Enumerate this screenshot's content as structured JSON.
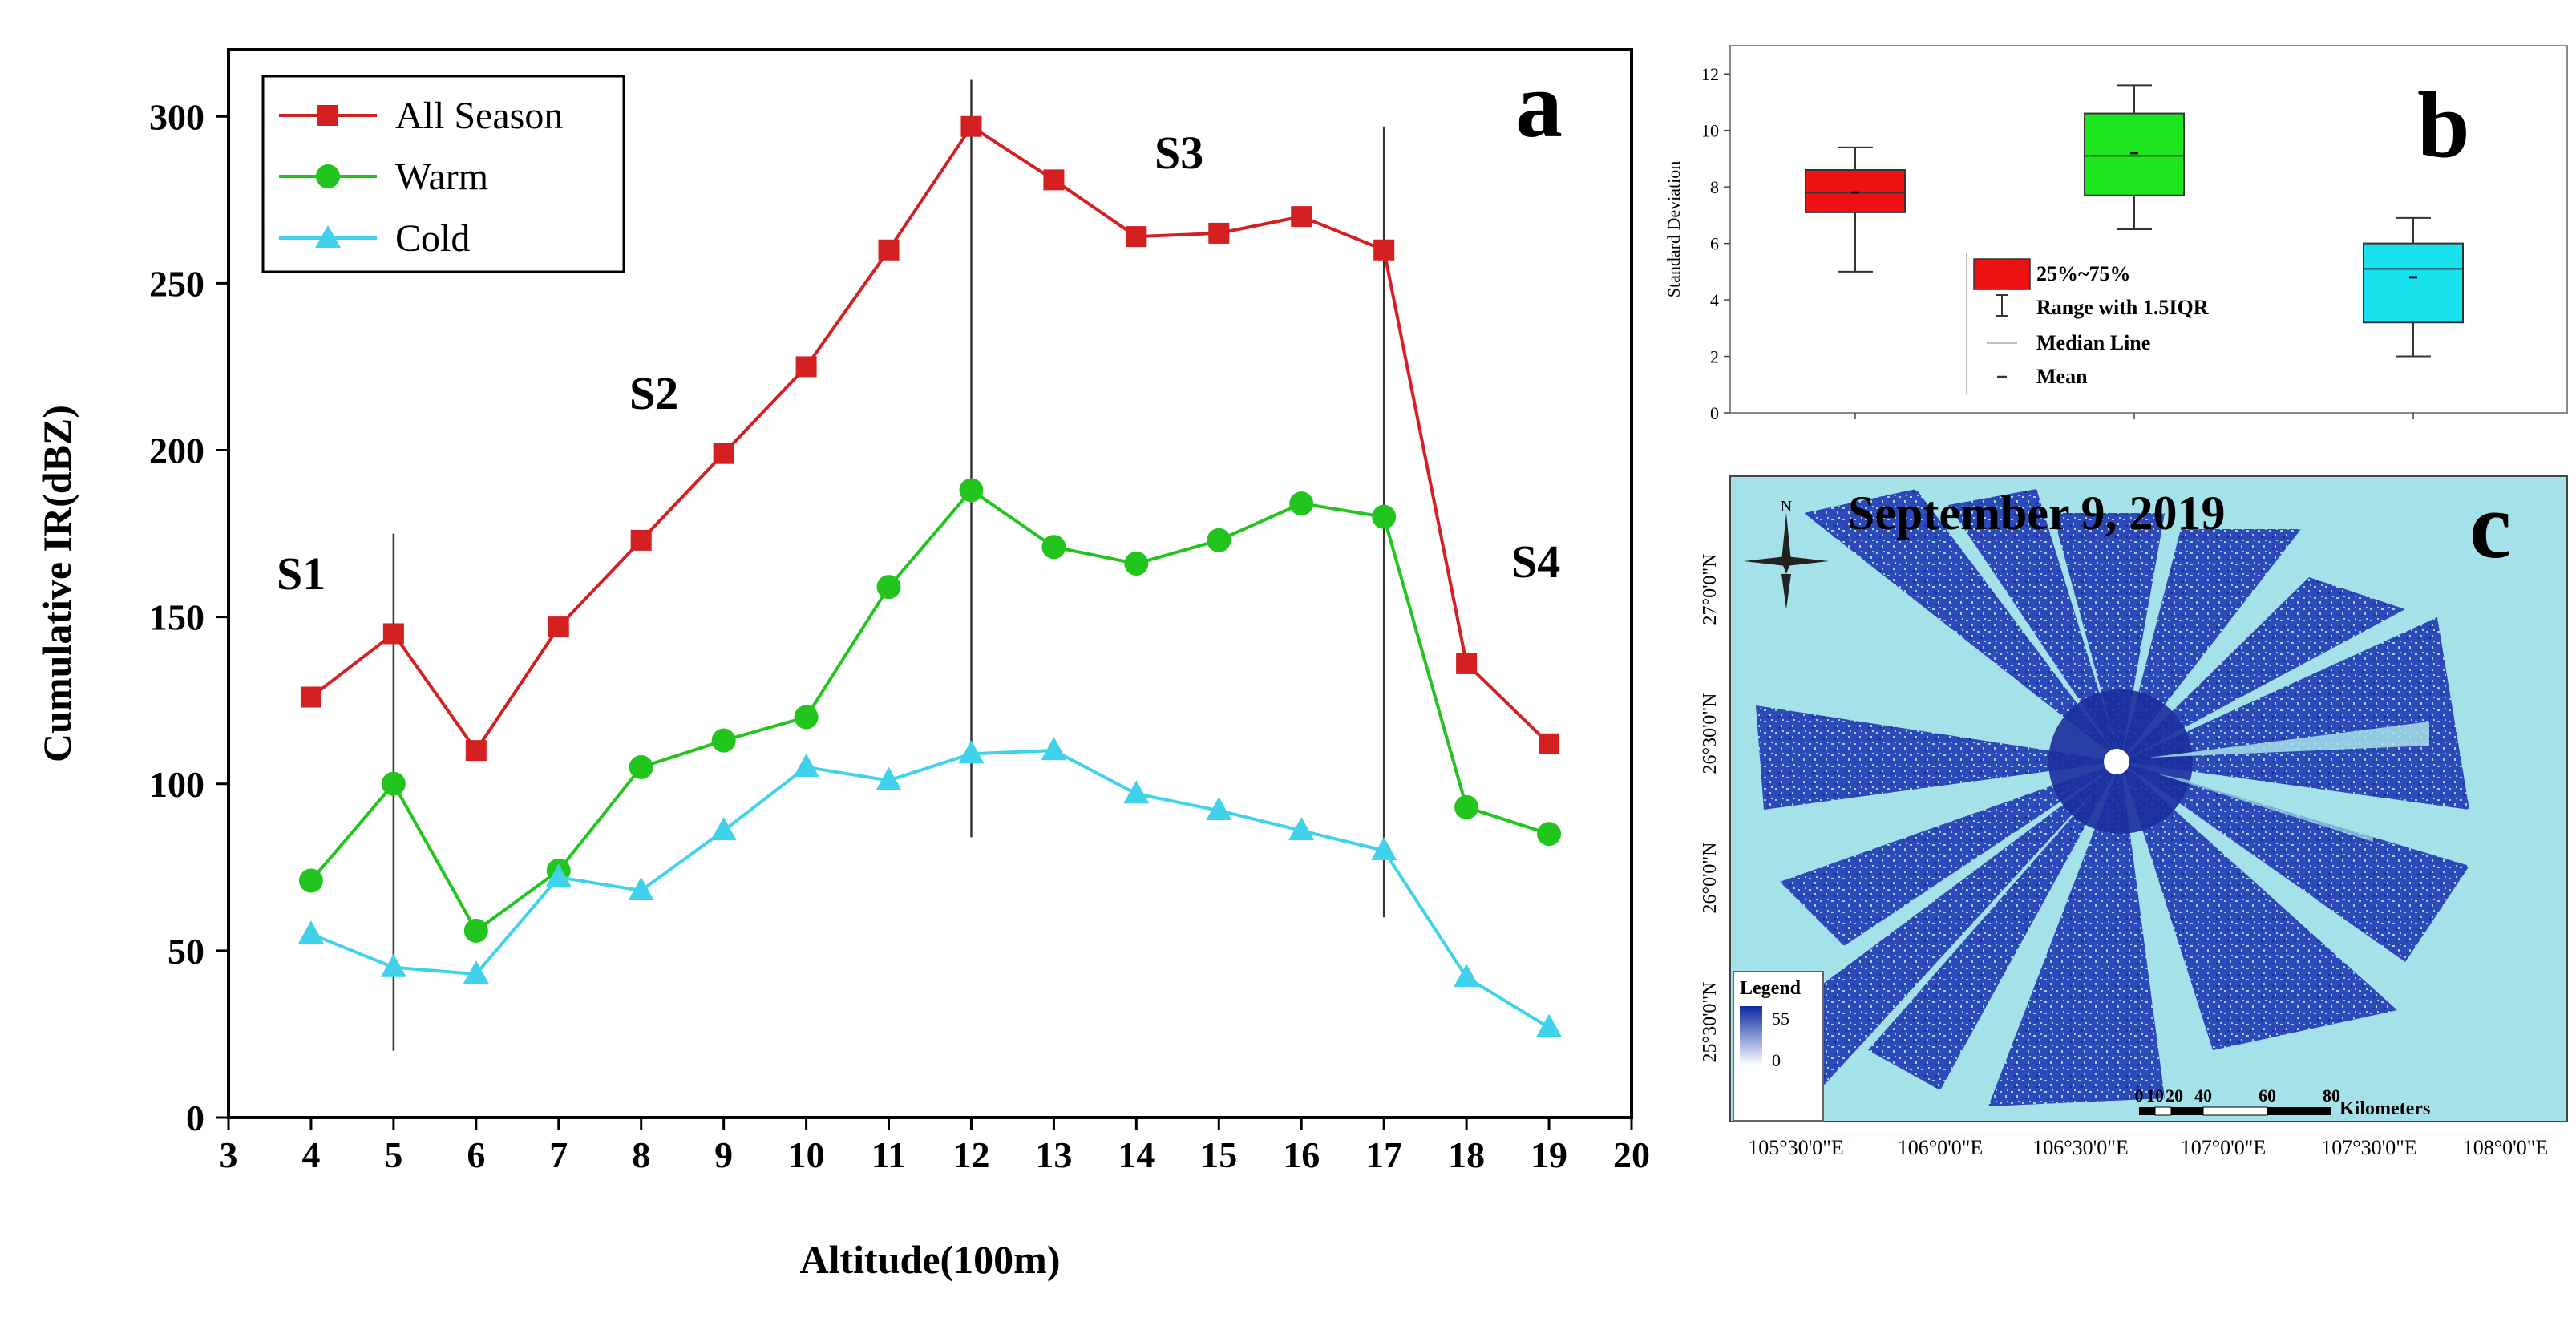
{
  "panel_a": {
    "label": "a",
    "chart_data": {
      "type": "line",
      "xlabel": "Altitude(100m)",
      "ylabel": "Cumulative IR(dBZ)",
      "xlim": [
        3,
        20
      ],
      "ylim": [
        0,
        320
      ],
      "x_ticks": [
        3,
        4,
        5,
        6,
        7,
        8,
        9,
        10,
        11,
        12,
        13,
        14,
        15,
        16,
        17,
        18,
        19,
        20
      ],
      "y_ticks": [
        0,
        50,
        100,
        150,
        200,
        250,
        300
      ],
      "x": [
        4,
        5,
        6,
        7,
        8,
        9,
        10,
        11,
        12,
        13,
        14,
        15,
        16,
        17,
        18,
        19
      ],
      "series": [
        {
          "name": "All Season",
          "color": "#d42020",
          "marker": "square",
          "values": [
            126,
            145,
            110,
            147,
            173,
            199,
            225,
            260,
            297,
            281,
            264,
            265,
            270,
            260,
            136,
            112
          ]
        },
        {
          "name": "Warm",
          "color": "#22c51e",
          "marker": "circle",
          "values": [
            71,
            100,
            56,
            74,
            105,
            113,
            120,
            159,
            188,
            171,
            166,
            173,
            184,
            180,
            93,
            85
          ]
        },
        {
          "name": "Cold",
          "color": "#3fd2ea",
          "marker": "triangle",
          "values": [
            55,
            45,
            43,
            72,
            68,
            86,
            105,
            101,
            109,
            110,
            97,
            92,
            86,
            80,
            42,
            27
          ]
        }
      ],
      "vertical_lines": [
        {
          "x": 5,
          "y_range": [
            20,
            175
          ]
        },
        {
          "x": 12,
          "y_range": [
            84,
            311
          ]
        },
        {
          "x": 17,
          "y_range": [
            60,
            297
          ]
        }
      ],
      "annotations": [
        {
          "text": "S1",
          "x": 3.7,
          "y": 155
        },
        {
          "text": "S2",
          "x": 8.3,
          "y": 215
        },
        {
          "text": "S3",
          "x": 14.2,
          "y": 285
        },
        {
          "text": "S4",
          "x": 19.1,
          "y": 155
        }
      ],
      "legend_position": "top-left"
    }
  },
  "panel_b": {
    "label": "b",
    "chart_data": {
      "type": "box",
      "ylabel": "Standard Deviation",
      "ylim": [
        0,
        13
      ],
      "y_ticks": [
        0,
        2,
        4,
        6,
        8,
        10,
        12
      ],
      "boxes": [
        {
          "color": "#ee1111",
          "q1": 7.1,
          "median": 7.8,
          "q3": 8.6,
          "whisker_low": 5.0,
          "whisker_high": 9.4,
          "mean": 7.8
        },
        {
          "color": "#1ee61e",
          "q1": 7.7,
          "median": 9.1,
          "q3": 10.6,
          "whisker_low": 6.5,
          "whisker_high": 11.6,
          "mean": 9.2
        },
        {
          "color": "#18e2ee",
          "q1": 3.2,
          "median": 5.1,
          "q3": 6.0,
          "whisker_low": 2.0,
          "whisker_high": 6.9,
          "mean": 4.8
        }
      ],
      "legend": [
        "25%~75%",
        "Range with 1.5IQR",
        "Median Line",
        "Mean"
      ]
    }
  },
  "panel_c": {
    "label": "c",
    "title": "September 9, 2019",
    "lat_labels": [
      "27°0'0\"N",
      "26°30'0\"N",
      "26°0'0\"N",
      "25°30'0\"N"
    ],
    "lon_labels": [
      "105°30'0\"E",
      "106°0'0\"E",
      "106°30'0\"E",
      "107°0'0\"E",
      "107°30'0\"E",
      "108°0'0\"E"
    ],
    "legend_title": "Legend",
    "legend_max": "55",
    "legend_min": "0",
    "scale_ticks": [
      "0",
      "10",
      "20",
      "40",
      "60",
      "80"
    ],
    "scale_unit": "Kilometers",
    "north_label": "N"
  }
}
